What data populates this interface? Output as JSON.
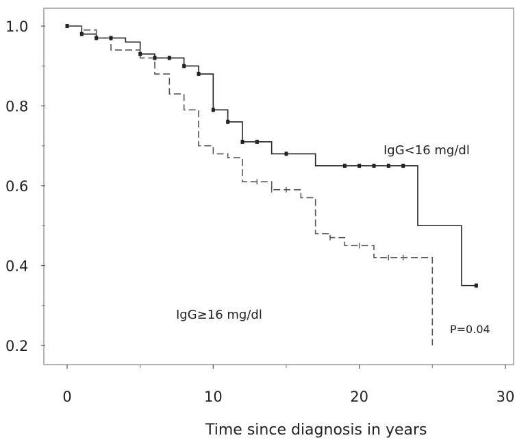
{
  "chart_data": {
    "type": "line",
    "title": "",
    "xlabel": "Time since diagnosis in years",
    "ylabel": "",
    "xlim": [
      0,
      30
    ],
    "ylim": [
      0.2,
      1.0
    ],
    "x_ticks": [
      0,
      10,
      20,
      30
    ],
    "x_tick_labels": [
      "0",
      "10",
      "20",
      "30"
    ],
    "y_ticks": [
      1.0,
      0.8,
      0.6,
      0.4,
      0.2
    ],
    "y_tick_labels": [
      "1.0",
      "0.8",
      "0.6",
      "0.4",
      "0.2"
    ],
    "grid": false,
    "series": [
      {
        "name": "IgG<16 mg/dl",
        "style": "solid",
        "color": "#222222",
        "steps": [
          [
            0,
            1.0
          ],
          [
            1,
            0.98
          ],
          [
            2,
            0.97
          ],
          [
            4,
            0.96
          ],
          [
            5,
            0.93
          ],
          [
            6,
            0.92
          ],
          [
            8,
            0.9
          ],
          [
            9,
            0.88
          ],
          [
            10,
            0.79
          ],
          [
            11,
            0.76
          ],
          [
            12,
            0.71
          ],
          [
            14,
            0.68
          ],
          [
            17,
            0.65
          ],
          [
            24,
            0.5
          ],
          [
            27,
            0.35
          ],
          [
            28,
            0.35
          ]
        ],
        "censored": [
          0,
          1,
          2,
          3,
          5,
          6,
          7,
          8,
          9,
          10,
          11,
          12,
          13,
          15,
          19,
          20,
          21,
          22,
          23,
          28
        ]
      },
      {
        "name": "IgG≥16 mg/dl",
        "style": "dashed",
        "color": "#555555",
        "steps": [
          [
            0,
            1.0
          ],
          [
            1,
            0.99
          ],
          [
            2,
            0.97
          ],
          [
            3,
            0.94
          ],
          [
            5,
            0.92
          ],
          [
            6,
            0.88
          ],
          [
            7,
            0.83
          ],
          [
            8,
            0.79
          ],
          [
            9,
            0.7
          ],
          [
            10,
            0.68
          ],
          [
            11,
            0.67
          ],
          [
            12,
            0.61
          ],
          [
            14,
            0.59
          ],
          [
            16,
            0.57
          ],
          [
            17,
            0.48
          ],
          [
            18,
            0.47
          ],
          [
            19,
            0.45
          ],
          [
            21,
            0.42
          ],
          [
            25,
            0.42
          ],
          [
            25,
            0.2
          ]
        ],
        "censored": [
          13,
          14,
          15,
          18,
          20,
          22,
          23
        ]
      }
    ],
    "annotations": [
      {
        "text": "IgG<16 mg/dl",
        "x": 24,
        "y": 0.72
      },
      {
        "text": "IgG≥16 mg/dl",
        "x": 14,
        "y": 0.29
      },
      {
        "text": "P=0.04",
        "x": 29,
        "y": 0.25
      }
    ]
  }
}
